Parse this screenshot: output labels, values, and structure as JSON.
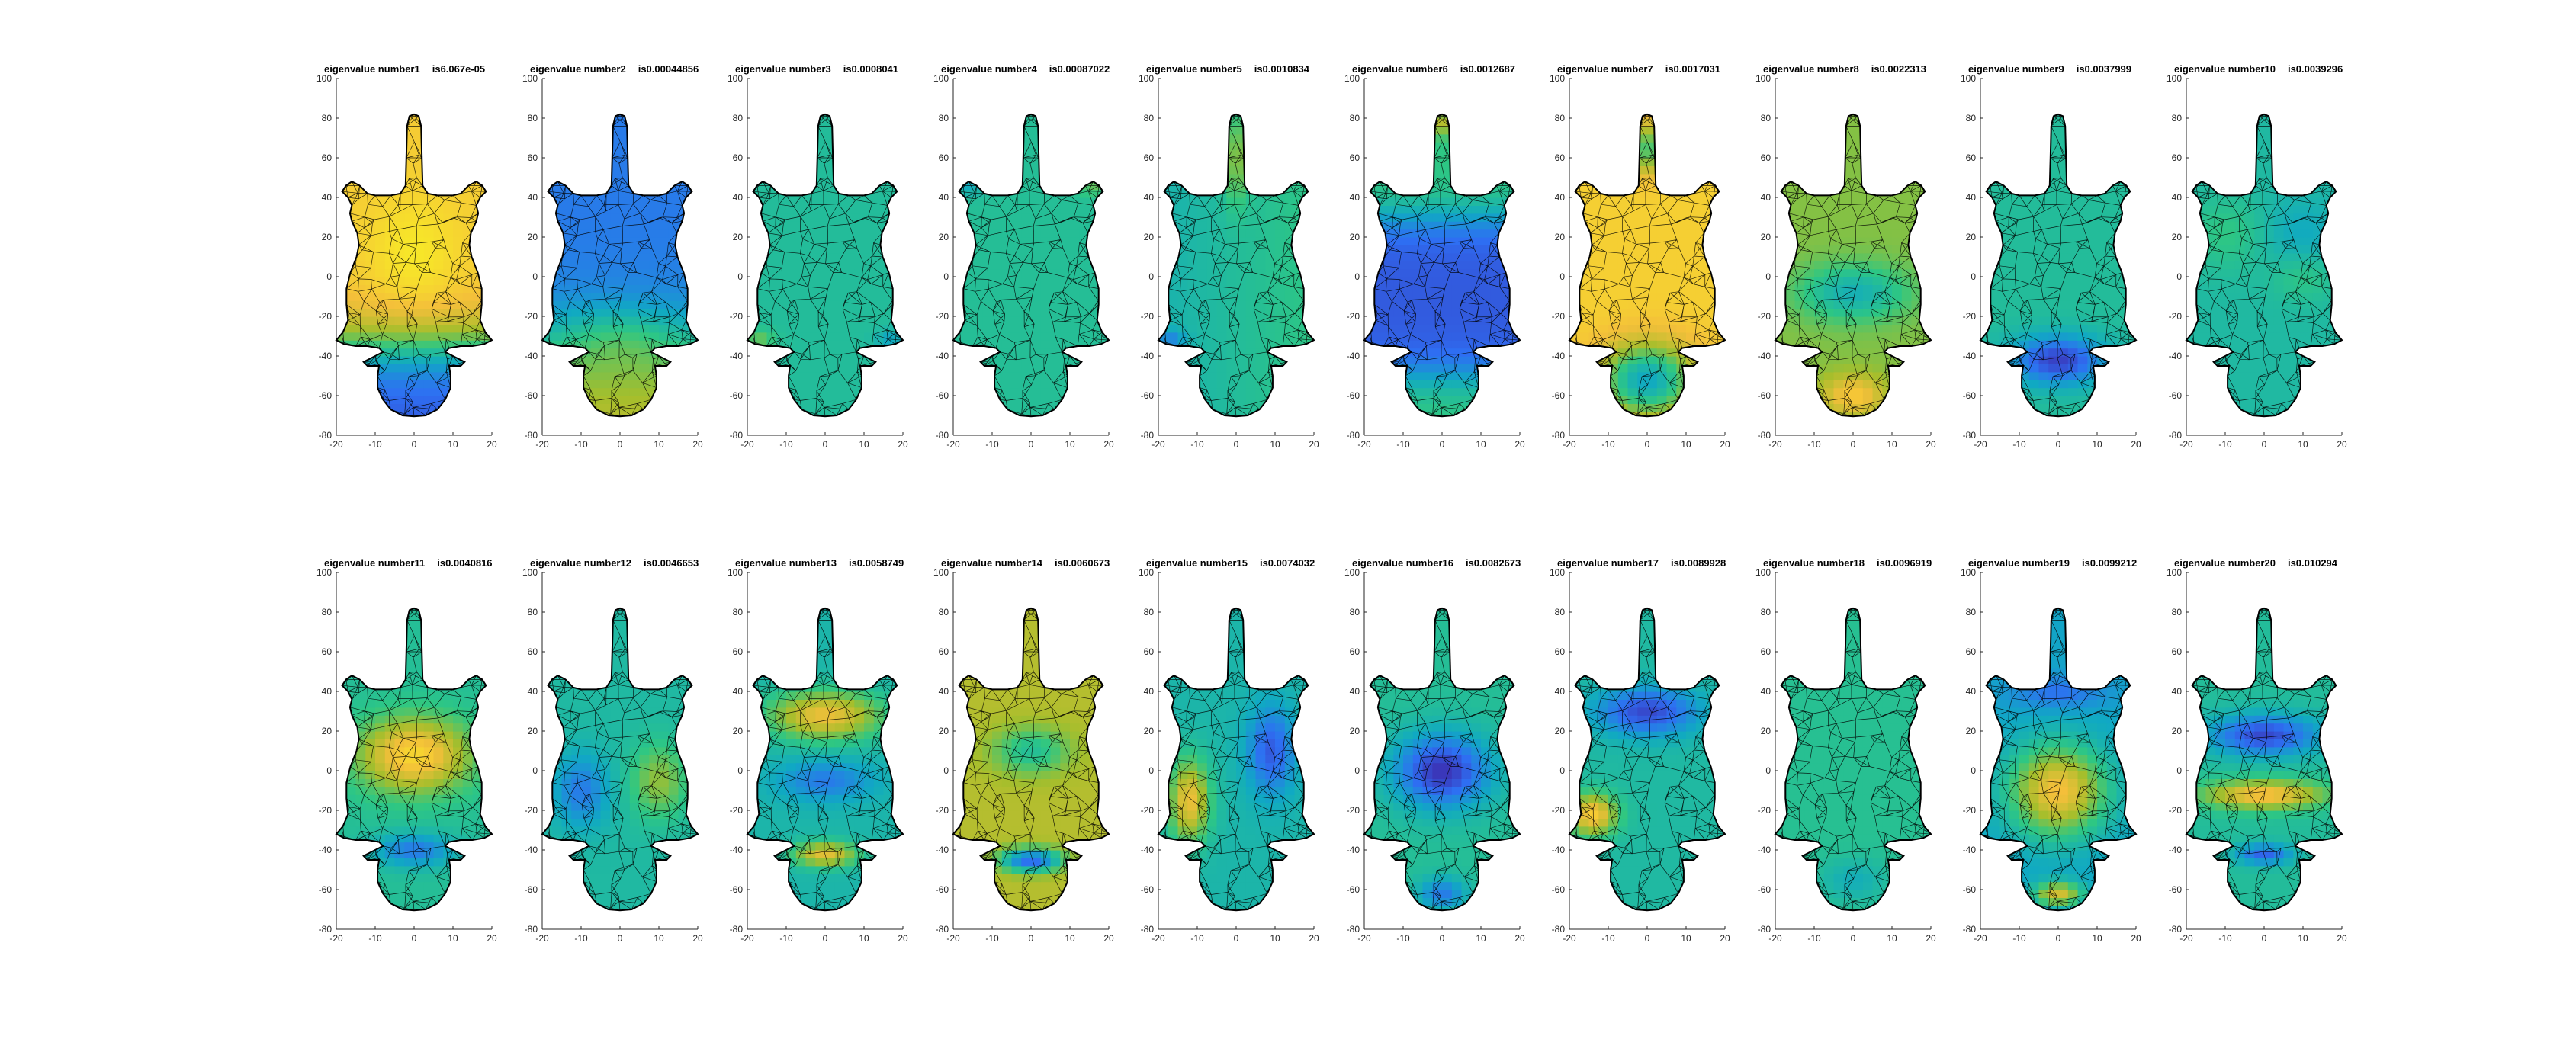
{
  "figure": {
    "background": "#ffffff",
    "axis_color": "#262626",
    "mesh_edge_color": "#000000"
  },
  "colormap": [
    "#3e26a8",
    "#2e6ff3",
    "#10a9c3",
    "#2ec783",
    "#a5be2c",
    "#f4bf3a",
    "#f9f920"
  ],
  "chart_data": {
    "type": "heatmap",
    "description_of_marks": "filled triangulated mesh per panel, colored by eigenvector value",
    "layout": {
      "rows": 2,
      "cols": 10
    },
    "shared_axes": {
      "xlim": [
        -20,
        20
      ],
      "ylim": [
        -80,
        100
      ],
      "xticks": [
        -20,
        -10,
        0,
        10,
        20
      ],
      "yticks": [
        -80,
        -60,
        -40,
        -20,
        0,
        20,
        40,
        60,
        80,
        100
      ],
      "grid": false
    },
    "panels": [
      {
        "title_label": "eigenvalue number1",
        "title_value": "is6.067e-05"
      },
      {
        "title_label": "eigenvalue number2",
        "title_value": "is0.00044856"
      },
      {
        "title_label": "eigenvalue number3",
        "title_value": "is0.0008041"
      },
      {
        "title_label": "eigenvalue number4",
        "title_value": "is0.00087022"
      },
      {
        "title_label": "eigenvalue number5",
        "title_value": "is0.0010834"
      },
      {
        "title_label": "eigenvalue number6",
        "title_value": "is0.0012687"
      },
      {
        "title_label": "eigenvalue number7",
        "title_value": "is0.0017031"
      },
      {
        "title_label": "eigenvalue number8",
        "title_value": "is0.0022313"
      },
      {
        "title_label": "eigenvalue number9",
        "title_value": "is0.0037999"
      },
      {
        "title_label": "eigenvalue number10",
        "title_value": "is0.0039296"
      },
      {
        "title_label": "eigenvalue number11",
        "title_value": "is0.0040816"
      },
      {
        "title_label": "eigenvalue number12",
        "title_value": "is0.0046653"
      },
      {
        "title_label": "eigenvalue number13",
        "title_value": "is0.0058749"
      },
      {
        "title_label": "eigenvalue number14",
        "title_value": "is0.0060673"
      },
      {
        "title_label": "eigenvalue number15",
        "title_value": "is0.0074032"
      },
      {
        "title_label": "eigenvalue number16",
        "title_value": "is0.0082673"
      },
      {
        "title_label": "eigenvalue number17",
        "title_value": "is0.0089928"
      },
      {
        "title_label": "eigenvalue number18",
        "title_value": "is0.0096919"
      },
      {
        "title_label": "eigenvalue number19",
        "title_value": "is0.0099212"
      },
      {
        "title_label": "eigenvalue number20",
        "title_value": "is0.010294"
      }
    ]
  }
}
